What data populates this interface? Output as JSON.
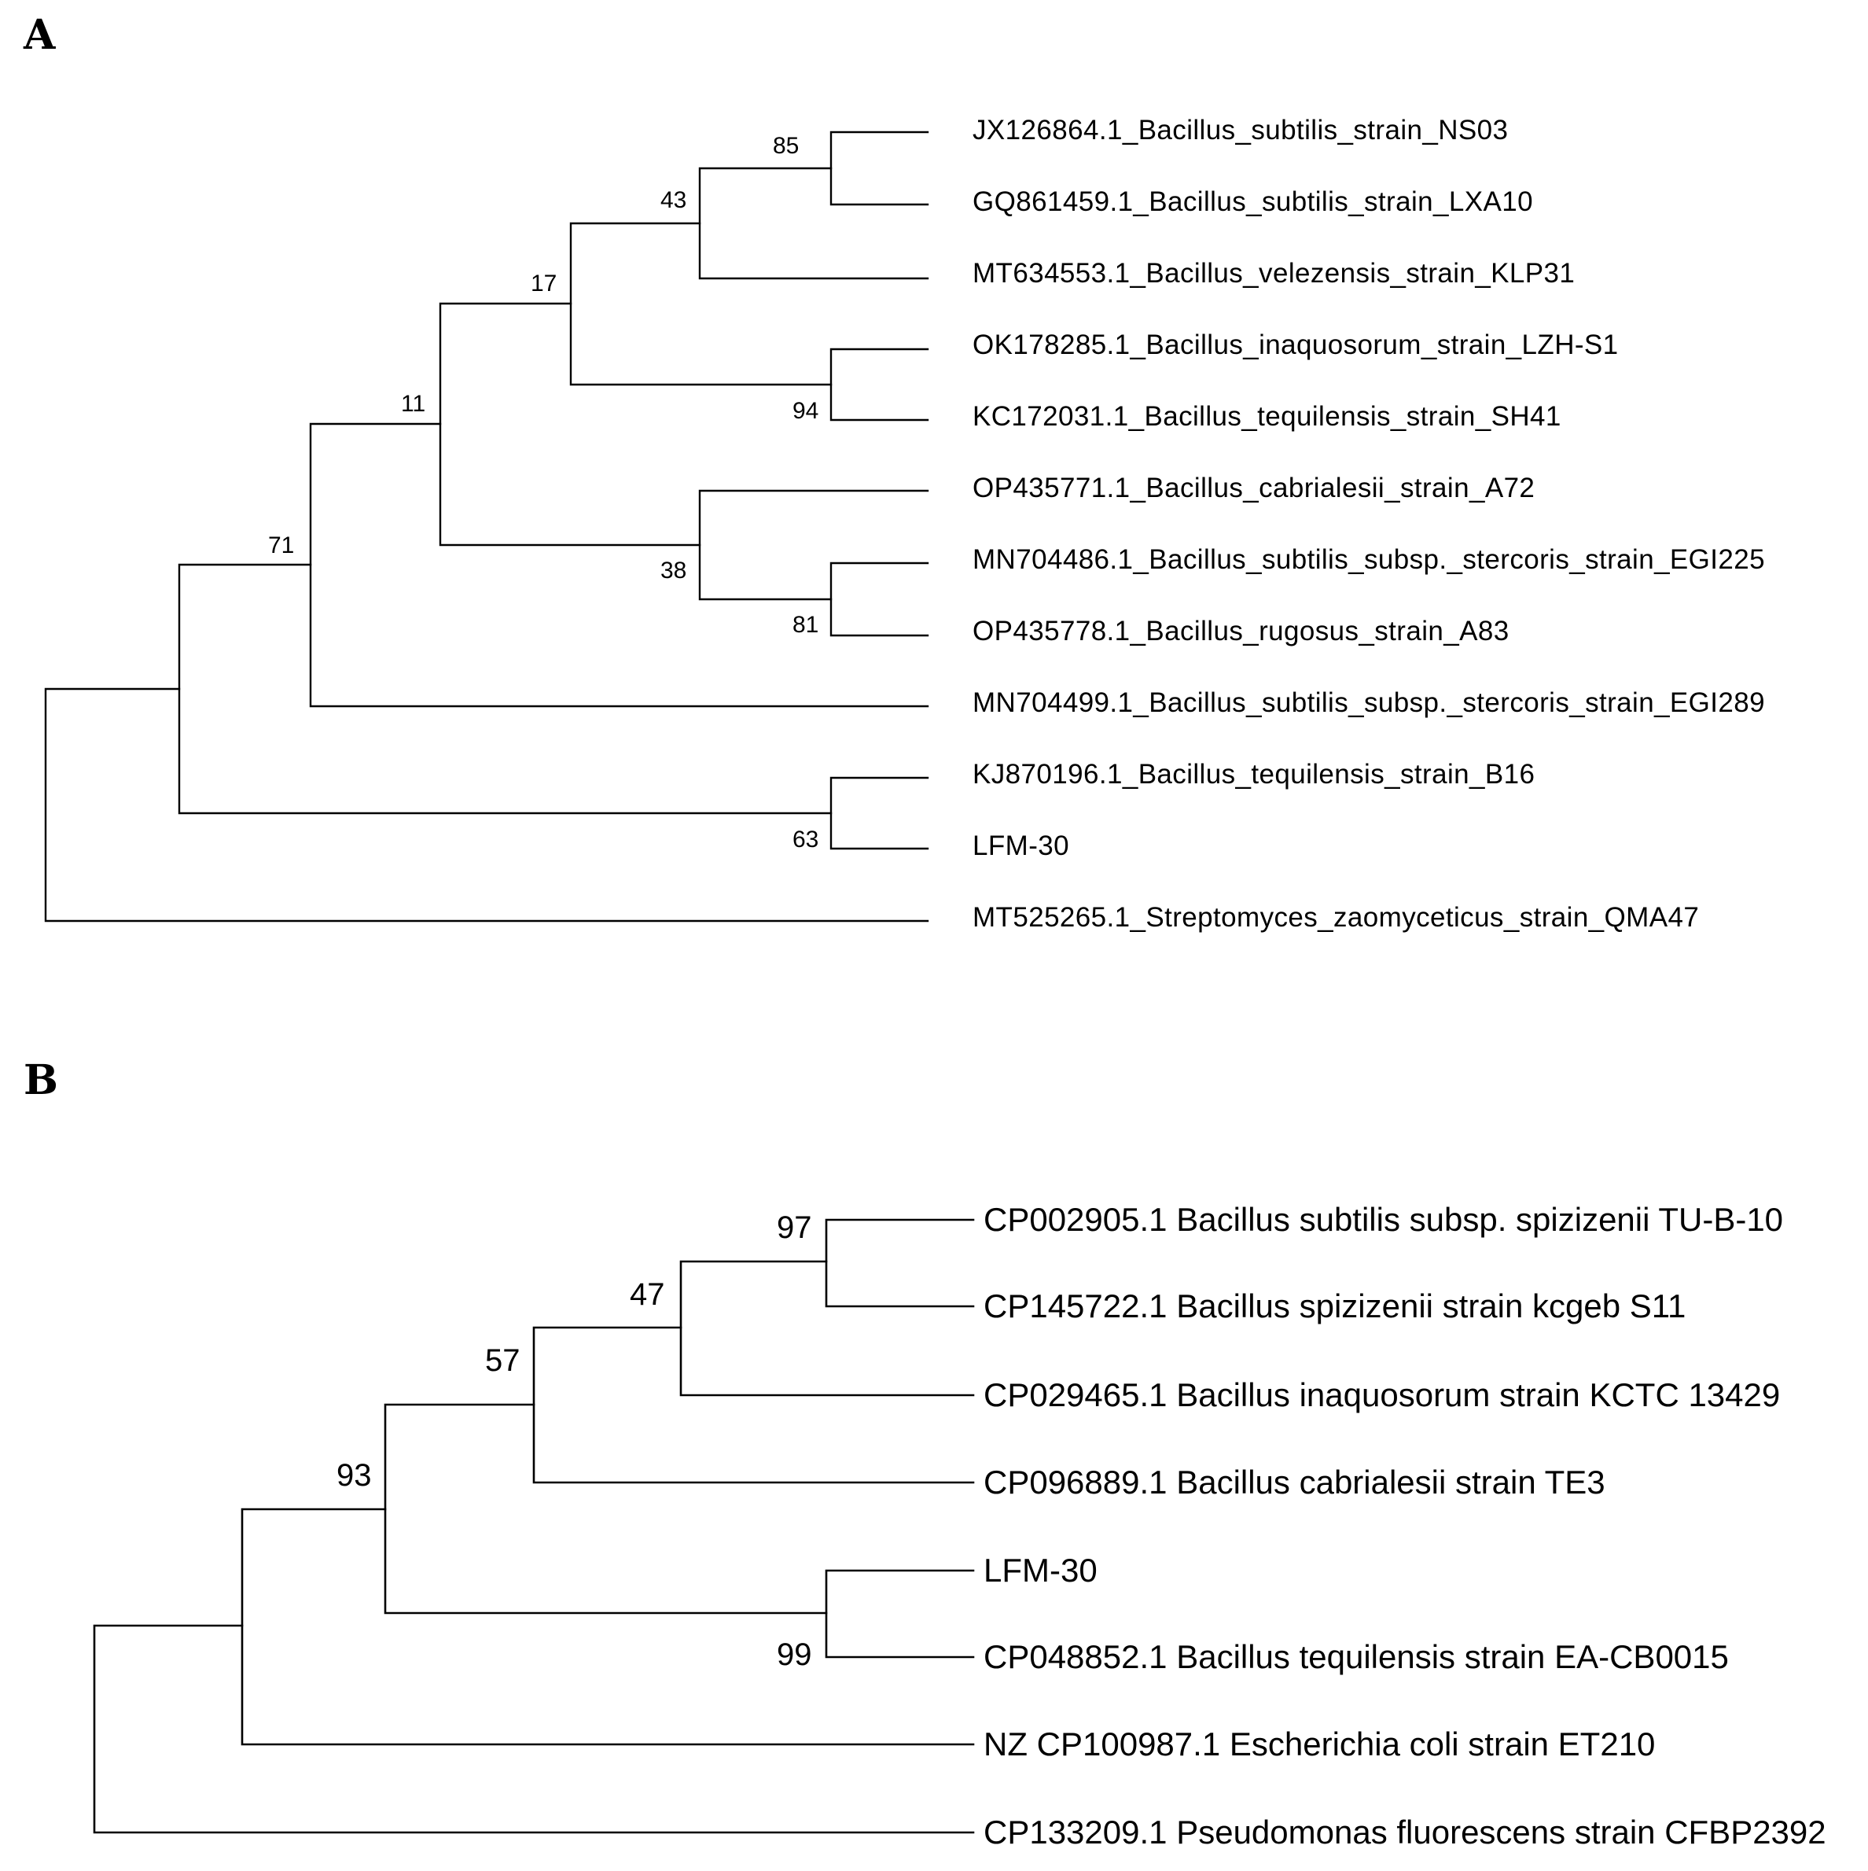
{
  "panels": [
    {
      "label": "A",
      "leaves": [
        "JX126864.1_Bacillus_subtilis_strain_NS03",
        "GQ861459.1_Bacillus_subtilis_strain_LXA10",
        "MT634553.1_Bacillus_velezensis_strain_KLP31",
        "OK178285.1_Bacillus_inaquosorum_strain_LZH-S1",
        "KC172031.1_Bacillus_tequilensis_strain_SH41",
        "OP435771.1_Bacillus_cabrialesii_strain_A72",
        "MN704486.1_Bacillus_subtilis_subsp._stercoris_strain_EGI225",
        "OP435778.1_Bacillus_rugosus_strain_A83",
        "MN704499.1_Bacillus_subtilis_subsp._stercoris_strain_EGI289",
        "KJ870196.1_Bacillus_tequilensis_strain_B16",
        "LFM-30",
        "MT525265.1_Streptomyces_zaomyceticus_strain_QMA47"
      ],
      "bootstrap": [
        "85",
        "43",
        "17",
        "94",
        "11",
        "38",
        "81",
        "71",
        "63"
      ]
    },
    {
      "label": "B",
      "leaves": [
        "CP002905.1 Bacillus subtilis subsp. spizizenii TU-B-10",
        "CP145722.1 Bacillus spizizenii strain kcgeb S11",
        "CP029465.1 Bacillus inaquosorum strain KCTC 13429",
        "CP096889.1 Bacillus cabrialesii strain TE3",
        "LFM-30",
        "CP048852.1 Bacillus tequilensis strain EA-CB0015",
        "NZ CP100987.1 Escherichia coli strain ET210",
        "CP133209.1 Pseudomonas fluorescens strain CFBP2392"
      ],
      "bootstrap": [
        "97",
        "47",
        "57",
        "93",
        "99"
      ]
    }
  ]
}
